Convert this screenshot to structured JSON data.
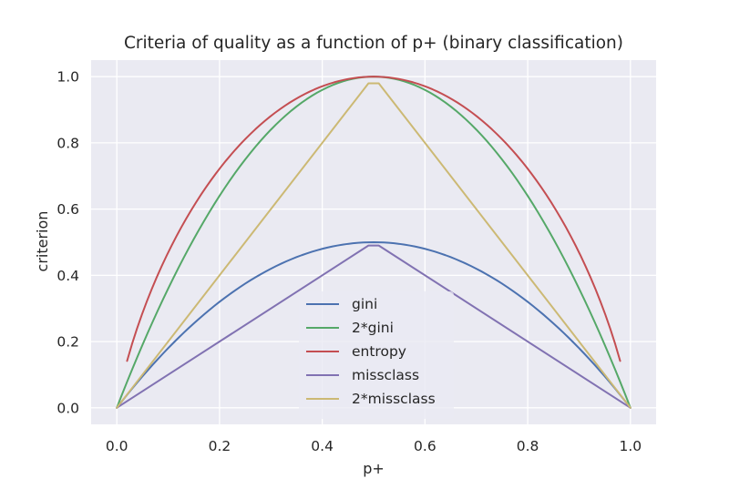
{
  "colors": {
    "plot_bg": "#eaeaf2",
    "grid": "#ffffff",
    "text": "#262626",
    "legend_bg": "#eaeaf2"
  },
  "chart_data": {
    "type": "line",
    "title": "Criteria of quality as a function of p+ (binary classification)",
    "xlabel": "p+",
    "ylabel": "criterion",
    "xlim": [
      -0.05,
      1.05
    ],
    "ylim": [
      -0.05,
      1.05
    ],
    "xticks": [
      0.0,
      0.2,
      0.4,
      0.6,
      0.8,
      1.0
    ],
    "yticks": [
      0.0,
      0.2,
      0.4,
      0.6,
      0.8,
      1.0
    ],
    "xtick_labels": [
      "0.0",
      "0.2",
      "0.4",
      "0.6",
      "0.8",
      "1.0"
    ],
    "ytick_labels": [
      "0.0",
      "0.2",
      "0.4",
      "0.6",
      "0.8",
      "1.0"
    ],
    "grid": true,
    "legend": "center-bottom",
    "series": [
      {
        "name": "gini",
        "color": "#4c72b0",
        "x": [
          0.0,
          0.1,
          0.2,
          0.3,
          0.4,
          0.5,
          0.6,
          0.7,
          0.8,
          0.9,
          1.0
        ],
        "y": [
          0.0,
          0.18,
          0.32,
          0.42,
          0.48,
          0.5,
          0.48,
          0.42,
          0.32,
          0.18,
          0.0
        ]
      },
      {
        "name": "2*gini",
        "color": "#55a868",
        "x": [
          0.0,
          0.1,
          0.2,
          0.3,
          0.4,
          0.5,
          0.6,
          0.7,
          0.8,
          0.9,
          1.0
        ],
        "y": [
          0.0,
          0.36,
          0.64,
          0.84,
          0.96,
          1.0,
          0.96,
          0.84,
          0.64,
          0.36,
          0.0
        ]
      },
      {
        "name": "entropy",
        "color": "#c44e52",
        "x": [
          0.02,
          0.1,
          0.2,
          0.3,
          0.4,
          0.5,
          0.6,
          0.7,
          0.8,
          0.9,
          0.98
        ],
        "y": [
          0.14,
          0.47,
          0.72,
          0.88,
          0.97,
          1.0,
          0.97,
          0.88,
          0.72,
          0.47,
          0.14
        ]
      },
      {
        "name": "missclass",
        "color": "#8172b2",
        "x": [
          0.0,
          0.49,
          0.51,
          1.0
        ],
        "y": [
          0.0,
          0.49,
          0.49,
          0.0
        ]
      },
      {
        "name": "2*missclass",
        "color": "#ccb974",
        "x": [
          0.0,
          0.49,
          0.51,
          1.0
        ],
        "y": [
          0.0,
          0.98,
          0.98,
          0.0
        ]
      }
    ]
  }
}
